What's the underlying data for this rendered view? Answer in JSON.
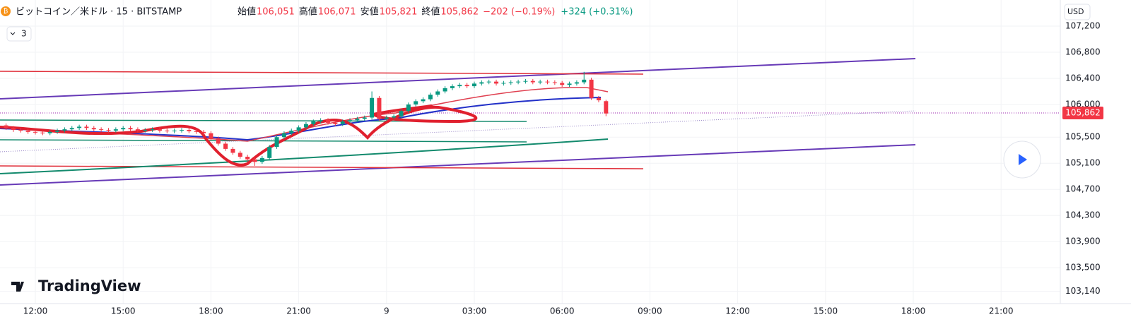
{
  "header": {
    "symbol": "ビットコイン／米ドル · 15 · BITSTAMP",
    "ohlc": [
      {
        "label": "始値",
        "value": "106,051"
      },
      {
        "label": "高値",
        "value": "106,071"
      },
      {
        "label": "安値",
        "value": "105,821"
      },
      {
        "label": "終値",
        "value": "105,862"
      }
    ],
    "change": "−202 (−0.19%)",
    "change2": "+324 (+0.31%)",
    "indicators": "3",
    "currency": "USD",
    "brand": "TradingView"
  },
  "chart_data": {
    "type": "candlestick",
    "up_color": "#089981",
    "down_color": "#f23645",
    "grid": true,
    "x": [
      -1,
      -0.75,
      -0.5,
      -0.25,
      0,
      0.25,
      0.5,
      0.75,
      1,
      1.25,
      1.5,
      1.75,
      2,
      2.25,
      2.5,
      2.75,
      3,
      3.25,
      3.5,
      3.75,
      4,
      4.25,
      4.5,
      4.75,
      5,
      5.25,
      5.5,
      5.75,
      6,
      6.25,
      6.5,
      6.75,
      7,
      7.25,
      7.5,
      7.75,
      8,
      8.25,
      8.5,
      8.75,
      9,
      9.25,
      9.5,
      9.75,
      10,
      10.25,
      10.5,
      10.75,
      11,
      11.25,
      11.5,
      11.75,
      12,
      12.25,
      12.5,
      12.75,
      13,
      13.25,
      13.5,
      13.75,
      14,
      14.25,
      14.5,
      14.75,
      15,
      15.25,
      15.5,
      15.75,
      16,
      16.25,
      16.5,
      16.75,
      17,
      17.25,
      17.5,
      17.75,
      18,
      18.25,
      18.5,
      18.75,
      19,
      19.25,
      19.5
    ],
    "open": [
      105680,
      105640,
      105610,
      105600,
      105580,
      105570,
      105560,
      105580,
      105600,
      105620,
      105640,
      105660,
      105640,
      105620,
      105610,
      105600,
      105620,
      105640,
      105620,
      105600,
      105610,
      105620,
      105600,
      105590,
      105600,
      105610,
      105590,
      105580,
      105560,
      105480,
      105400,
      105320,
      105260,
      105200,
      105160,
      105120,
      105180,
      105350,
      105500,
      105560,
      105600,
      105650,
      105700,
      105740,
      105760,
      105720,
      105700,
      105740,
      105760,
      105780,
      105800,
      106100,
      105780,
      105800,
      105820,
      105900,
      106000,
      106050,
      106080,
      106150,
      106200,
      106250,
      106280,
      106300,
      106280,
      106320,
      106340,
      106350,
      106320,
      106330,
      106340,
      106350,
      106360,
      106340,
      106350,
      106340,
      106330,
      106300,
      106320,
      106340,
      106380,
      106100,
      106051
    ],
    "high": [
      105710,
      105670,
      105640,
      105630,
      105610,
      105600,
      105610,
      105630,
      105650,
      105670,
      105690,
      105690,
      105670,
      105650,
      105640,
      105650,
      105670,
      105670,
      105650,
      105640,
      105650,
      105650,
      105630,
      105630,
      105640,
      105640,
      105620,
      105610,
      105590,
      105510,
      105430,
      105350,
      105290,
      105230,
      105190,
      105210,
      105380,
      105530,
      105590,
      105630,
      105680,
      105730,
      105770,
      105790,
      105790,
      105750,
      105770,
      105790,
      105810,
      105830,
      106200,
      106130,
      105830,
      105850,
      105930,
      106030,
      106080,
      106110,
      106180,
      106230,
      106280,
      106310,
      106330,
      106330,
      106350,
      106370,
      106380,
      106380,
      106360,
      106370,
      106380,
      106390,
      106390,
      106380,
      106380,
      106370,
      106360,
      106350,
      106370,
      106500,
      106410,
      106130,
      106071
    ],
    "low": [
      105610,
      105580,
      105570,
      105550,
      105540,
      105530,
      105530,
      105550,
      105570,
      105590,
      105610,
      105610,
      105590,
      105580,
      105570,
      105570,
      105590,
      105590,
      105570,
      105570,
      105580,
      105570,
      105560,
      105560,
      105570,
      105560,
      105550,
      105530,
      105450,
      105370,
      105290,
      105230,
      105170,
      105130,
      105060,
      105090,
      105150,
      105320,
      105470,
      105530,
      105570,
      105620,
      105670,
      105710,
      105690,
      105670,
      105670,
      105710,
      105730,
      105750,
      105770,
      105750,
      105750,
      105770,
      105790,
      105870,
      105970,
      106020,
      106050,
      106120,
      106170,
      106220,
      106250,
      106250,
      106250,
      106290,
      106310,
      106290,
      106290,
      106300,
      106310,
      106320,
      106310,
      106310,
      106310,
      106300,
      106270,
      106270,
      106290,
      106310,
      106070,
      106034,
      105821
    ],
    "close": [
      105640,
      105610,
      105600,
      105580,
      105570,
      105560,
      105580,
      105600,
      105620,
      105640,
      105660,
      105640,
      105620,
      105610,
      105600,
      105620,
      105640,
      105620,
      105600,
      105610,
      105620,
      105600,
      105590,
      105600,
      105610,
      105590,
      105580,
      105560,
      105480,
      105400,
      105320,
      105260,
      105200,
      105160,
      105120,
      105180,
      105350,
      105500,
      105560,
      105600,
      105650,
      105700,
      105740,
      105760,
      105720,
      105700,
      105740,
      105760,
      105780,
      105800,
      106100,
      105780,
      105800,
      105820,
      105900,
      106000,
      106050,
      106080,
      106150,
      106200,
      106250,
      106280,
      106300,
      106280,
      106320,
      106340,
      106350,
      106320,
      106330,
      106340,
      106350,
      106360,
      106340,
      106350,
      106340,
      106330,
      106300,
      106320,
      106340,
      106380,
      106100,
      106064,
      105862
    ],
    "xlim": [
      -1.2077,
      35.0242
    ],
    "ylim": [
      102951,
      107600
    ],
    "xticks": [
      {
        "value": 0,
        "label": "12:00"
      },
      {
        "value": 3,
        "label": "15:00"
      },
      {
        "value": 6,
        "label": "18:00"
      },
      {
        "value": 9,
        "label": "21:00"
      },
      {
        "value": 12,
        "label": "9"
      },
      {
        "value": 15,
        "label": "03:00"
      },
      {
        "value": 18,
        "label": "06:00"
      },
      {
        "value": 21,
        "label": "09:00"
      },
      {
        "value": 24,
        "label": "12:00"
      },
      {
        "value": 27,
        "label": "15:00"
      },
      {
        "value": 30,
        "label": "18:00"
      },
      {
        "value": 33,
        "label": "21:00"
      }
    ],
    "yticks": [
      {
        "value": 107200,
        "label": "107,200"
      },
      {
        "value": 106800,
        "label": "106,800"
      },
      {
        "value": 106400,
        "label": "106,400"
      },
      {
        "value": 106000,
        "label": "106,000"
      },
      {
        "value": 105500,
        "label": "105,500"
      },
      {
        "value": 105100,
        "label": "105,100"
      },
      {
        "value": 104700,
        "label": "104,700"
      },
      {
        "value": 104300,
        "label": "104,300"
      },
      {
        "value": 103900,
        "label": "103,900"
      },
      {
        "value": 103500,
        "label": "103,500"
      },
      {
        "value": 103140,
        "label": "103,140"
      }
    ]
  }
}
